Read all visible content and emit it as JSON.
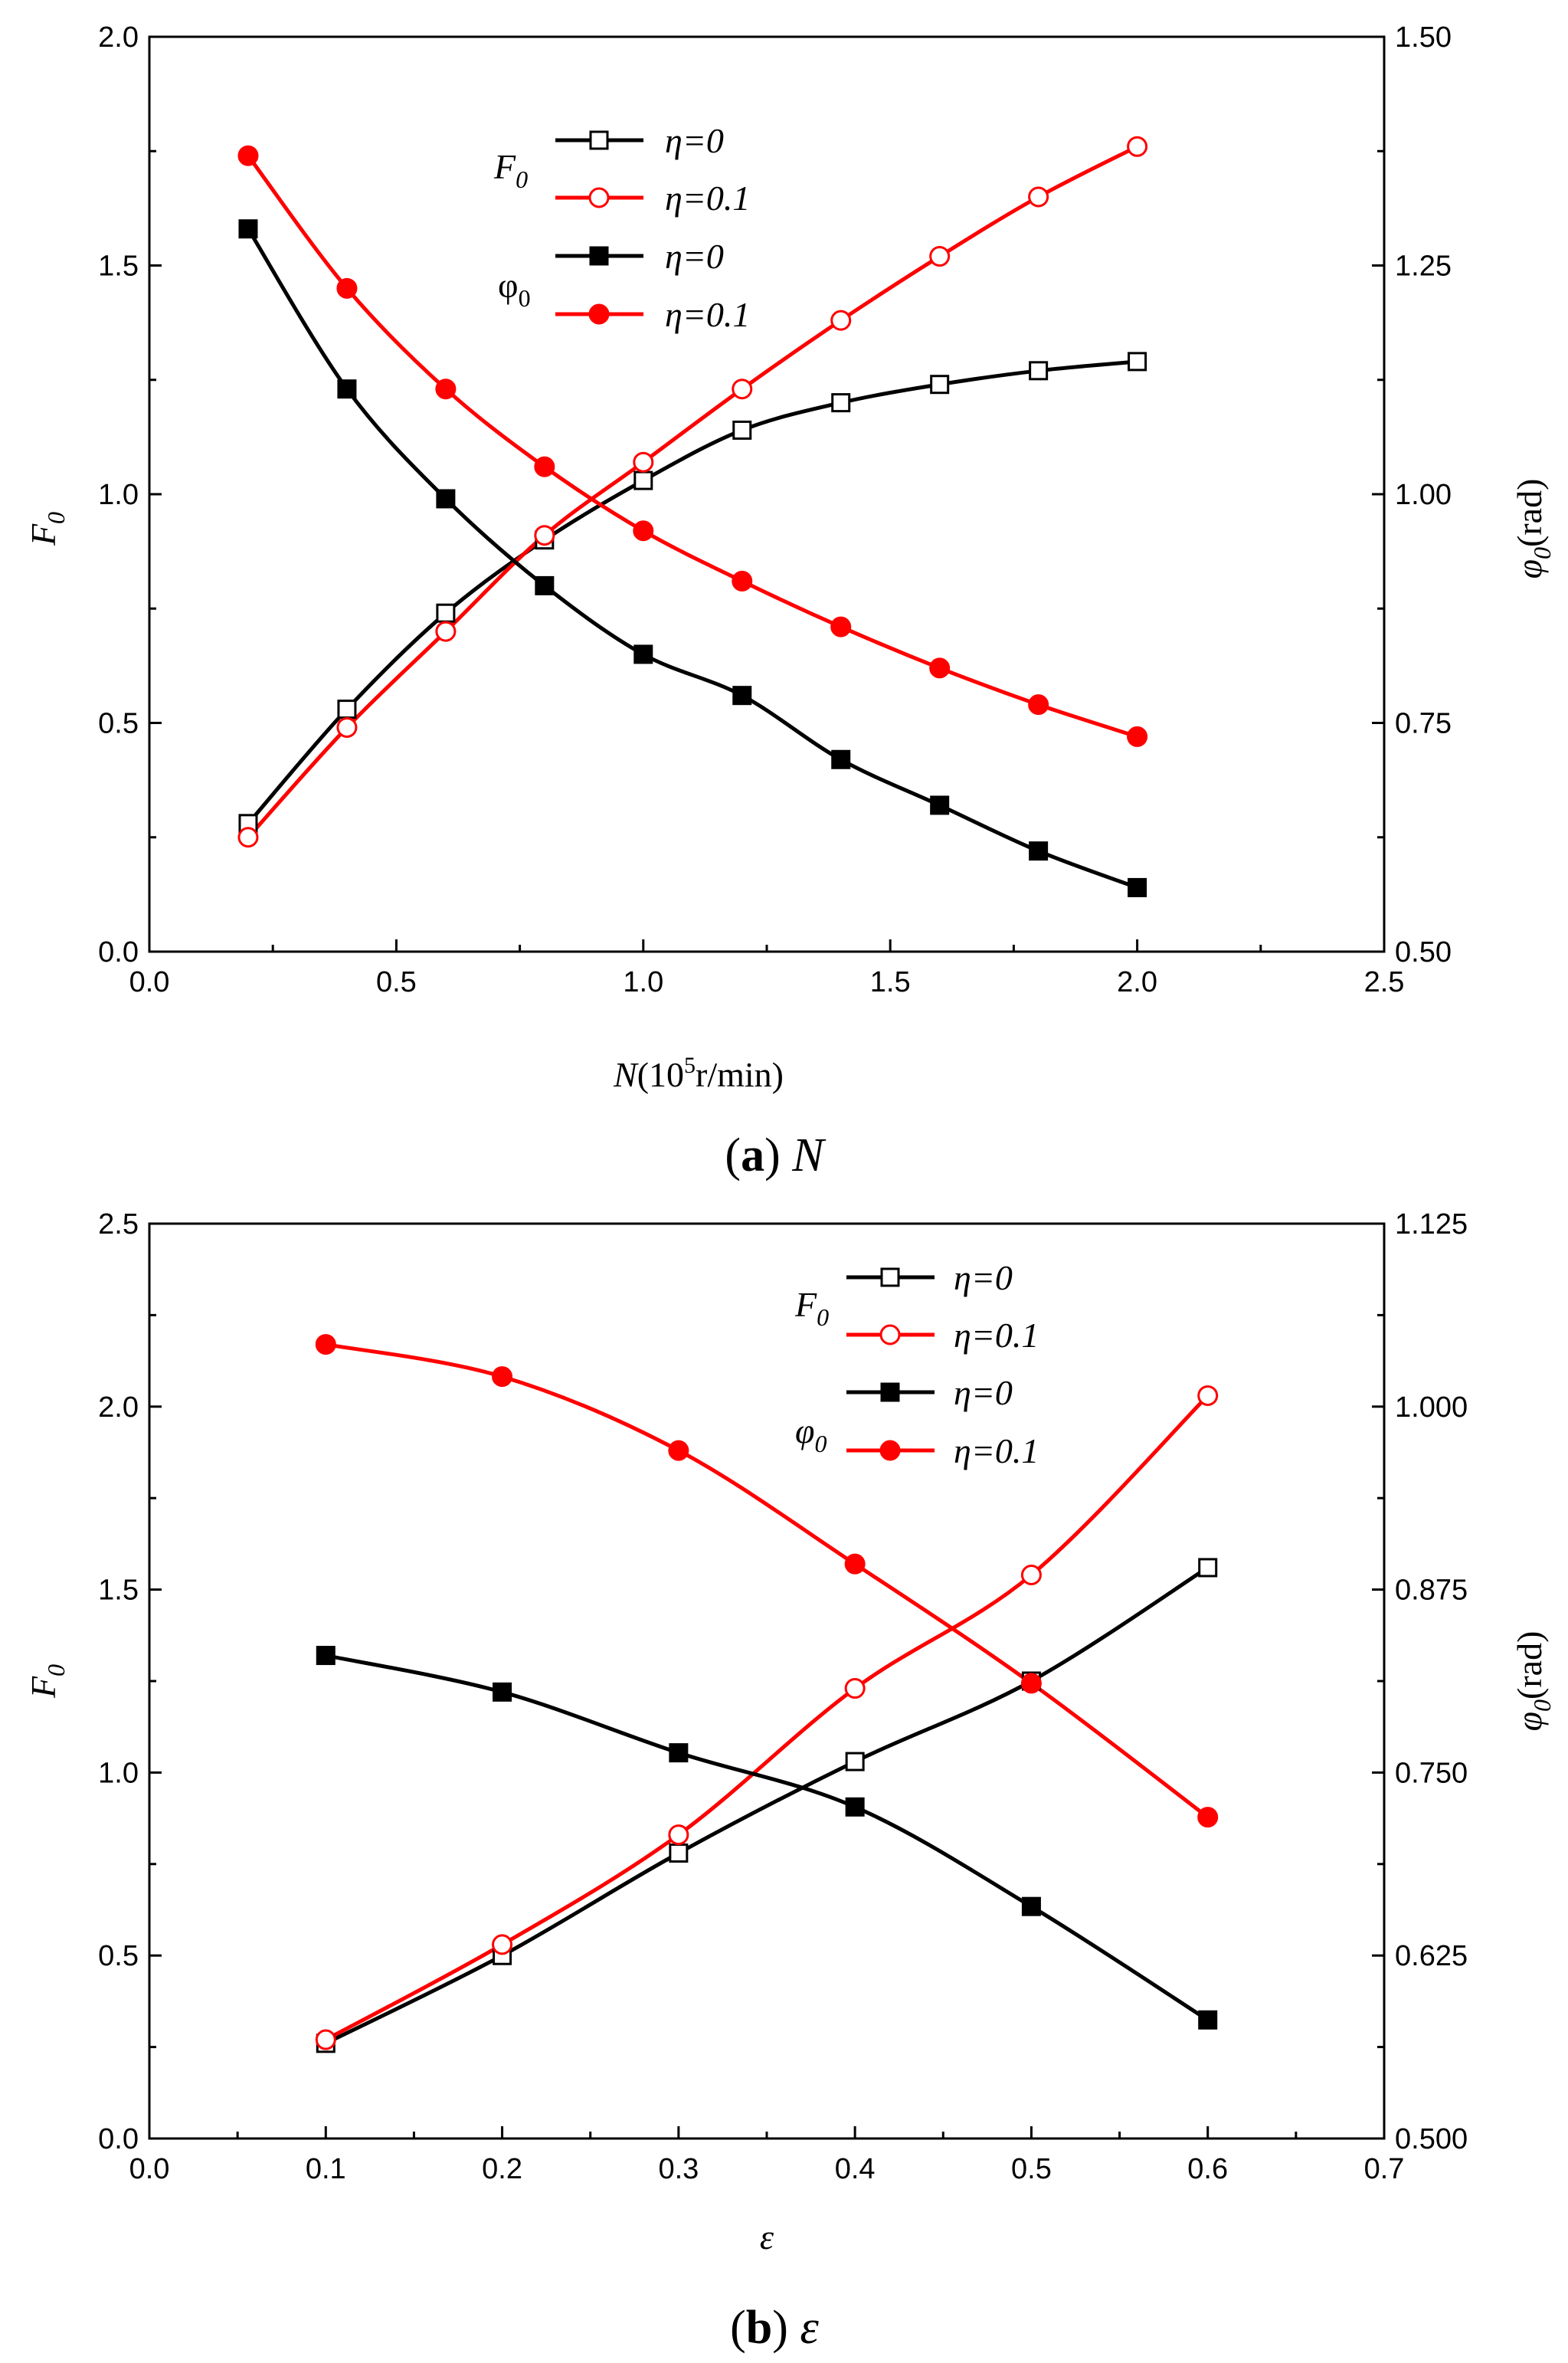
{
  "chart_data": [
    {
      "type": "line",
      "caption_letter": "a",
      "caption_var": "N",
      "x": [
        0.2,
        0.4,
        0.6,
        0.8,
        1.0,
        1.2,
        1.4,
        1.6,
        1.8,
        2.0
      ],
      "xlim": [
        0.0,
        2.5
      ],
      "xticks": [
        "0.0",
        "0.5",
        "1.0",
        "1.5",
        "2.0",
        "2.5"
      ],
      "xlabel_var": "N",
      "xlabel_base": "(10",
      "xlabel_sup": "5",
      "xlabel_unit": "r/min)",
      "ylim_left": [
        0.0,
        2.0
      ],
      "yticks_left": [
        "0.0",
        "0.5",
        "1.0",
        "1.5",
        "2.0"
      ],
      "ylabel_left_main": "F",
      "ylabel_left_sub": "0",
      "ylim_right": [
        0.5,
        1.5
      ],
      "yticks_right": [
        "0.50",
        "0.75",
        "1.00",
        "1.25",
        "1.50"
      ],
      "ylabel_right_main": "φ",
      "ylabel_right_sub": "0",
      "ylabel_right_unit": "(rad)",
      "legend_groups": [
        {
          "main": "F",
          "sub": "0"
        },
        {
          "main": "φ",
          "sub": "0"
        }
      ],
      "series": [
        {
          "name": "η=0",
          "group": "F0",
          "axis": "left",
          "color": "#000000",
          "marker": "square-open",
          "values": [
            0.28,
            0.53,
            0.74,
            0.9,
            1.03,
            1.14,
            1.2,
            1.24,
            1.27,
            1.29
          ]
        },
        {
          "name": "η=0.1",
          "group": "F0",
          "axis": "left",
          "color": "#ff0000",
          "marker": "circle-open",
          "values": [
            0.25,
            0.49,
            0.7,
            0.91,
            1.07,
            1.23,
            1.38,
            1.52,
            1.65,
            1.76
          ]
        },
        {
          "name": "η=0",
          "group": "φ0",
          "axis": "right",
          "color": "#000000",
          "marker": "square-filled",
          "values": [
            1.29,
            1.115,
            0.995,
            0.9,
            0.825,
            0.78,
            0.71,
            0.66,
            0.61,
            0.57
          ]
        },
        {
          "name": "η=0.1",
          "group": "φ0",
          "axis": "right",
          "color": "#ff0000",
          "marker": "circle-filled",
          "values": [
            1.37,
            1.225,
            1.115,
            1.03,
            0.96,
            0.905,
            0.855,
            0.81,
            0.77,
            0.735
          ]
        }
      ]
    },
    {
      "type": "line",
      "caption_letter": "b",
      "caption_var": "ε",
      "x": [
        0.1,
        0.2,
        0.3,
        0.4,
        0.5,
        0.6
      ],
      "xlim": [
        0.0,
        0.7
      ],
      "xticks": [
        "0.0",
        "0.1",
        "0.2",
        "0.3",
        "0.4",
        "0.5",
        "0.6",
        "0.7"
      ],
      "xlabel_var": "ε",
      "xlabel_base": "",
      "xlabel_sup": "",
      "xlabel_unit": "",
      "ylim_left": [
        0.0,
        2.5
      ],
      "yticks_left": [
        "0.0",
        "0.5",
        "1.0",
        "1.5",
        "2.0",
        "2.5"
      ],
      "ylabel_left_main": "F",
      "ylabel_left_sub": "0",
      "ylim_right": [
        0.5,
        1.125
      ],
      "yticks_right": [
        "0.500",
        "0.625",
        "0.750",
        "0.875",
        "1.000",
        "1.125"
      ],
      "ylabel_right_main": "φ",
      "ylabel_right_sub": "0",
      "ylabel_right_unit": "(rad)",
      "legend_groups": [
        {
          "main": "F",
          "sub": "0"
        },
        {
          "main": "φ",
          "sub": "0"
        }
      ],
      "series": [
        {
          "name": "η=0",
          "group": "F0",
          "axis": "left",
          "color": "#000000",
          "marker": "square-open",
          "values": [
            0.26,
            0.5,
            0.78,
            1.03,
            1.25,
            1.56
          ]
        },
        {
          "name": "η=0.1",
          "group": "F0",
          "axis": "left",
          "color": "#ff0000",
          "marker": "circle-open",
          "values": [
            0.27,
            0.53,
            0.83,
            1.23,
            1.54,
            2.03
          ]
        },
        {
          "name": "η=0",
          "group": "φ0",
          "axis": "right",
          "color": "#000000",
          "marker": "square-filled",
          "values": [
            0.83,
            0.805,
            0.7635,
            0.7265,
            0.6585,
            0.581
          ]
        },
        {
          "name": "η=0.1",
          "group": "φ0",
          "axis": "right",
          "color": "#ff0000",
          "marker": "circle-filled",
          "values": [
            1.0425,
            1.0205,
            0.97,
            0.8925,
            0.811,
            0.7195
          ]
        }
      ]
    }
  ]
}
